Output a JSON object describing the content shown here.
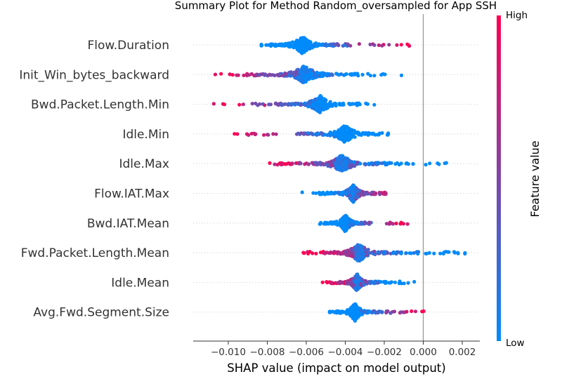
{
  "chart_data": {
    "type": "scatter",
    "title": "Summary Plot for Method Random_oversampled for App SSH",
    "xlabel": "SHAP value (impact on model output)",
    "xlim": [
      -0.0118,
      0.0029
    ],
    "xticks": [
      -0.01,
      -0.008,
      -0.006,
      -0.004,
      -0.002,
      0.0,
      0.002
    ],
    "xtick_labels": [
      "−0.010",
      "−0.008",
      "−0.006",
      "−0.004",
      "−0.002",
      "0.000",
      "0.002"
    ],
    "zero_line": 0,
    "features": [
      {
        "name": "Flow.Duration",
        "range": [
          -0.0083,
          -0.0006
        ],
        "mode": -0.0062,
        "high_side": "right"
      },
      {
        "name": "Init_Win_bytes_backward",
        "range": [
          -0.0111,
          -0.0011
        ],
        "mode": -0.0061,
        "high_side": "left"
      },
      {
        "name": "Bwd.Packet.Length.Min",
        "range": [
          -0.0108,
          -0.0025
        ],
        "mode": -0.0053,
        "high_side": "left"
      },
      {
        "name": "Idle.Min",
        "range": [
          -0.0101,
          -0.0018
        ],
        "mode": -0.004,
        "high_side": "left"
      },
      {
        "name": "Idle.Max",
        "range": [
          -0.0083,
          0.0013
        ],
        "mode": -0.0042,
        "high_side": "left"
      },
      {
        "name": "Flow.IAT.Max",
        "range": [
          -0.0064,
          -0.0011
        ],
        "mode": -0.0036,
        "high_side": "right"
      },
      {
        "name": "Bwd.IAT.Mean",
        "range": [
          -0.0054,
          -0.0008
        ],
        "mode": -0.004,
        "high_side": "right"
      },
      {
        "name": "Fwd.Packet.Length.Mean",
        "range": [
          -0.0063,
          0.0024
        ],
        "mode": -0.0033,
        "high_side": "left"
      },
      {
        "name": "Idle.Mean",
        "range": [
          -0.0052,
          -0.0004
        ],
        "mode": -0.0034,
        "high_side": "left"
      },
      {
        "name": "Avg.Fwd.Segment.Size",
        "range": [
          -0.0048,
          0.0003
        ],
        "mode": -0.0035,
        "high_side": "right"
      }
    ],
    "colorbar": {
      "title": "Feature value",
      "high_label": "High",
      "low_label": "Low",
      "high_color": "#ff0052",
      "low_color": "#008bfb"
    }
  }
}
